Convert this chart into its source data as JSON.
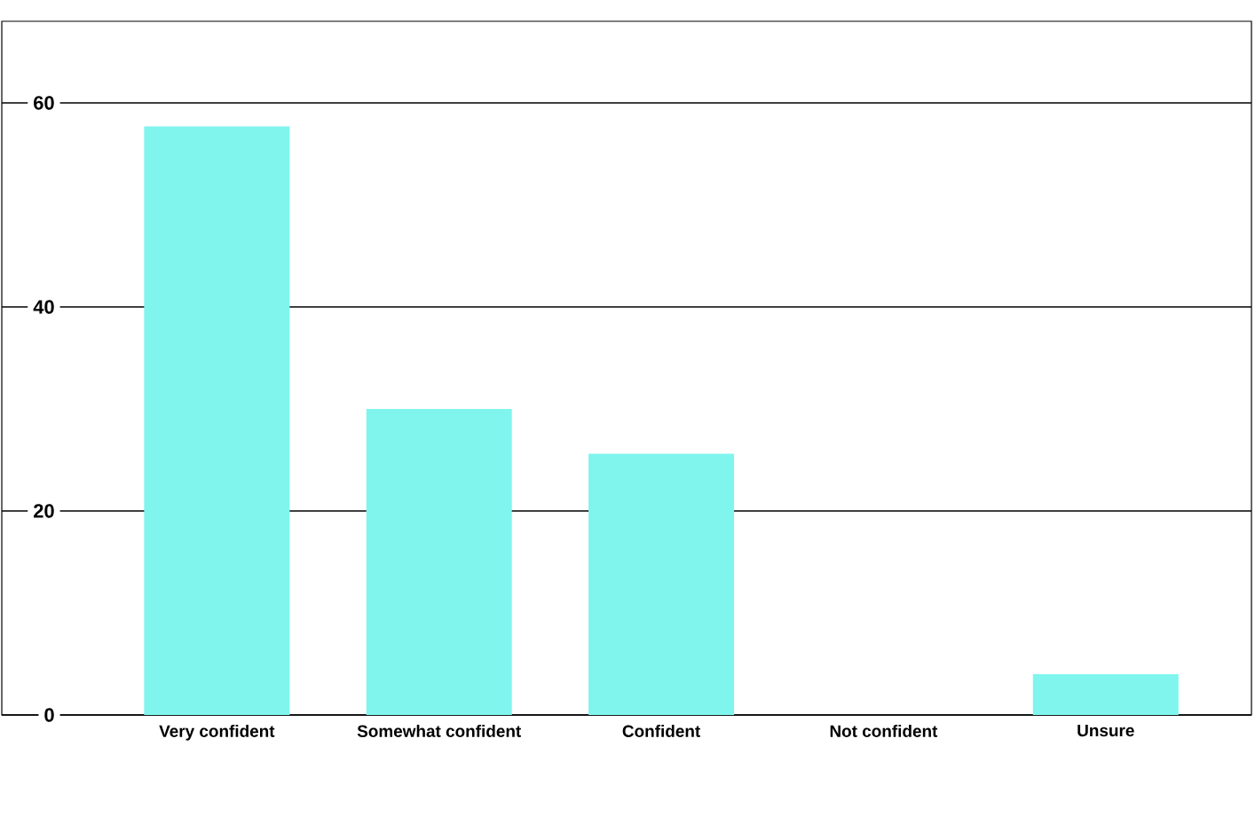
{
  "chart_data": {
    "type": "bar",
    "categories": [
      "Very confident",
      "Somewhat confident",
      "Confident",
      "Not confident",
      "Unsure"
    ],
    "values": [
      57.7,
      30,
      25.6,
      0,
      4
    ],
    "color": "#7ff5ee",
    "ylim": [
      0,
      68
    ],
    "yticks": [
      0,
      20,
      40,
      60
    ],
    "grid": "y"
  }
}
